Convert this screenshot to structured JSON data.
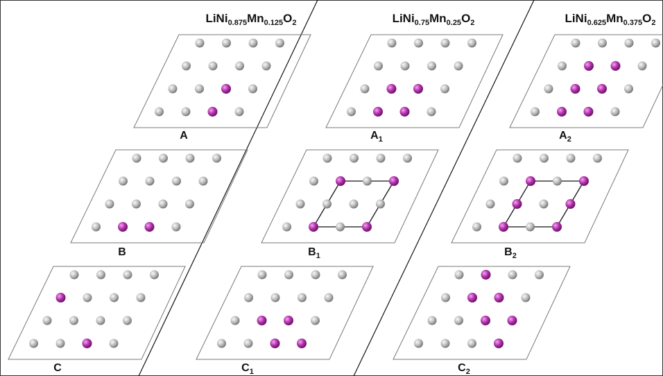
{
  "columns": [
    {
      "formula": [
        "LiNi",
        "0.875",
        "Mn",
        "0.125",
        "O",
        "2"
      ]
    },
    {
      "formula": [
        "LiNi",
        "0.75",
        "Mn",
        "0.25",
        "O",
        "2"
      ]
    },
    {
      "formula": [
        "LiNi",
        "0.625",
        "Mn",
        "0.375",
        "O",
        "2"
      ]
    }
  ],
  "panels": [
    {
      "letter": "A"
    },
    {
      "letter": "B"
    },
    {
      "letter": "C"
    },
    {
      "letter": "A",
      "sub": "1"
    },
    {
      "letter": "B",
      "sub": "1"
    },
    {
      "letter": "C",
      "sub": "1"
    },
    {
      "letter": "A",
      "sub": "2"
    },
    {
      "letter": "B",
      "sub": "2"
    },
    {
      "letter": "C",
      "sub": "2"
    }
  ]
}
